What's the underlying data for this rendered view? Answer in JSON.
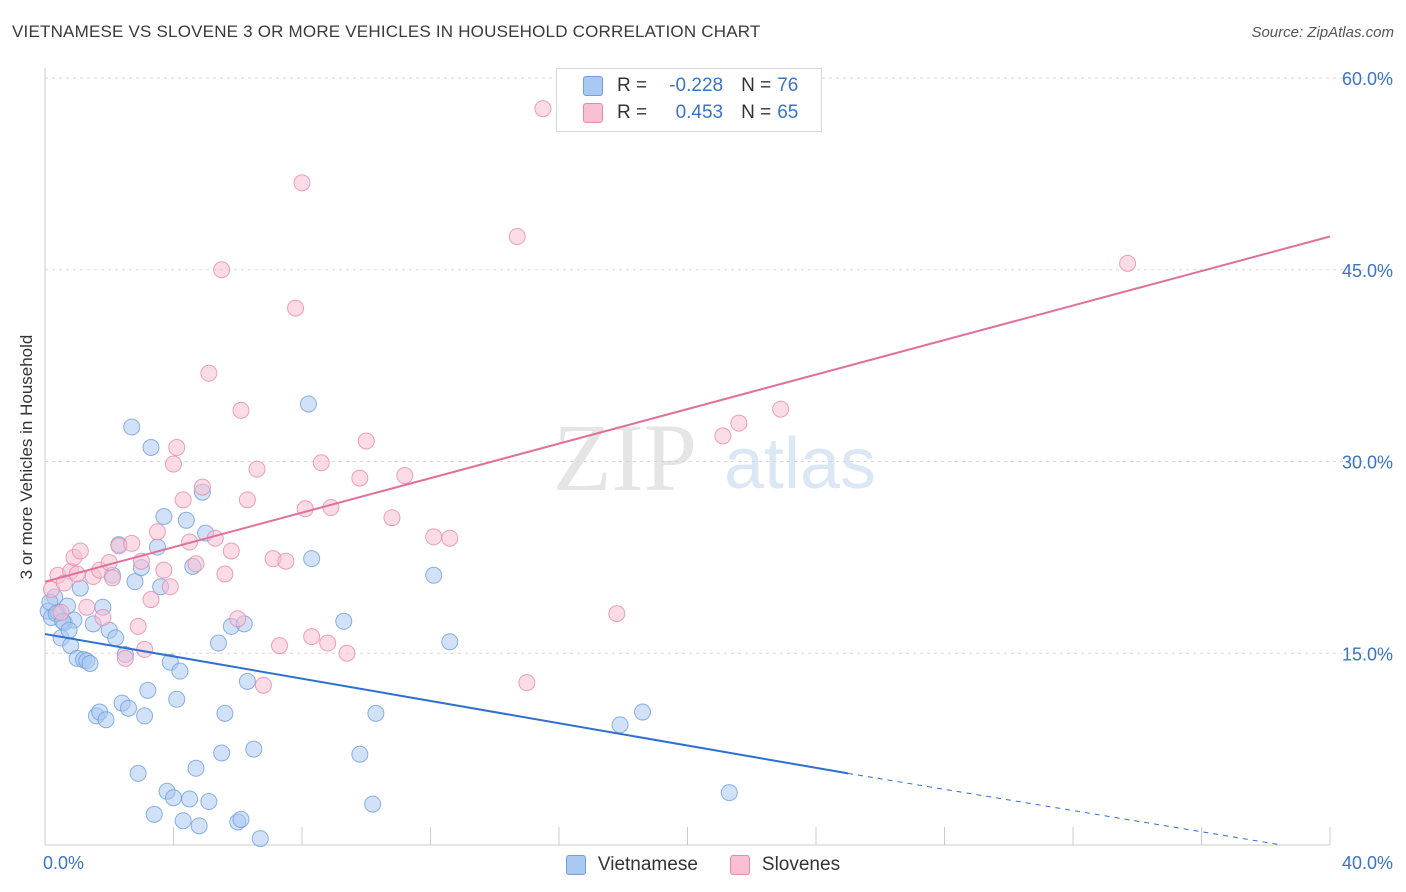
{
  "title": "VIETNAMESE VS SLOVENE 3 OR MORE VEHICLES IN HOUSEHOLD CORRELATION CHART",
  "source": "Source: ZipAtlas.com",
  "watermark": {
    "zip": "ZIP",
    "atlas": "atlas"
  },
  "legend": {
    "rows": [
      {
        "r_label": "R =",
        "r_value": "-0.228",
        "n_label": "N =",
        "n_value": "76",
        "color": "#a9c8f2",
        "border": "#6f9fdc"
      },
      {
        "r_label": "R =",
        "r_value": "0.453",
        "n_label": "N =",
        "n_value": "65",
        "color": "#f7bfd1",
        "border": "#e88aaa"
      }
    ]
  },
  "bottom_legend": [
    {
      "label": "Vietnamese",
      "color": "#a9c8f2",
      "border": "#6f9fdc"
    },
    {
      "label": "Slovenes",
      "color": "#f7bfd1",
      "border": "#e88aaa"
    }
  ],
  "chart_data": {
    "type": "scatter",
    "title": "VIETNAMESE VS SLOVENE 3 OR MORE VEHICLES IN HOUSEHOLD CORRELATION CHART",
    "xlabel": "",
    "ylabel": "3 or more Vehicles in Household",
    "xlim": [
      0,
      40
    ],
    "ylim": [
      0,
      60
    ],
    "x_tick_labels": [
      "0.0%",
      "40.0%"
    ],
    "y_ticks": [
      15,
      30,
      45,
      60
    ],
    "y_tick_labels": [
      "15.0%",
      "30.0%",
      "45.0%",
      "60.0%"
    ],
    "grid": true,
    "legend_position": "top-center",
    "series": [
      {
        "name": "Vietnamese",
        "color": "#6f9fdc",
        "fill": "#a9c8f2",
        "trend": {
          "x0": 0,
          "y0": 16.5,
          "x1": 25,
          "y1": 5.6,
          "dash_to_x": 38.5,
          "dash_to_y": 0
        },
        "points": [
          [
            0.1,
            18.3
          ],
          [
            0.2,
            17.8
          ],
          [
            0.3,
            19.4
          ],
          [
            0.4,
            18.2
          ],
          [
            0.5,
            16.2
          ],
          [
            0.6,
            17.4
          ],
          [
            0.7,
            18.7
          ],
          [
            0.8,
            15.6
          ],
          [
            0.9,
            17.6
          ],
          [
            1.0,
            14.6
          ],
          [
            1.1,
            20.1
          ],
          [
            1.2,
            14.5
          ],
          [
            1.3,
            14.4
          ],
          [
            1.4,
            14.2
          ],
          [
            1.5,
            17.3
          ],
          [
            1.6,
            10.1
          ],
          [
            1.7,
            10.4
          ],
          [
            1.8,
            18.6
          ],
          [
            1.9,
            9.8
          ],
          [
            2.0,
            16.8
          ],
          [
            2.1,
            21.1
          ],
          [
            2.2,
            16.2
          ],
          [
            2.3,
            23.5
          ],
          [
            2.4,
            11.1
          ],
          [
            2.5,
            14.9
          ],
          [
            2.6,
            10.7
          ],
          [
            2.7,
            32.7
          ],
          [
            2.8,
            20.6
          ],
          [
            2.9,
            5.6
          ],
          [
            3.0,
            21.7
          ],
          [
            3.1,
            10.1
          ],
          [
            3.2,
            12.1
          ],
          [
            3.3,
            31.1
          ],
          [
            3.4,
            2.4
          ],
          [
            3.5,
            23.3
          ],
          [
            3.6,
            20.2
          ],
          [
            3.7,
            25.7
          ],
          [
            3.8,
            4.2
          ],
          [
            3.9,
            14.3
          ],
          [
            4.0,
            3.7
          ],
          [
            4.1,
            11.4
          ],
          [
            4.2,
            13.6
          ],
          [
            4.3,
            1.9
          ],
          [
            4.4,
            25.4
          ],
          [
            4.5,
            3.6
          ],
          [
            4.6,
            21.8
          ],
          [
            4.7,
            6.0
          ],
          [
            4.8,
            1.5
          ],
          [
            4.9,
            27.6
          ],
          [
            5.0,
            24.4
          ],
          [
            5.1,
            3.4
          ],
          [
            5.4,
            15.8
          ],
          [
            5.5,
            7.2
          ],
          [
            5.6,
            10.3
          ],
          [
            5.8,
            17.1
          ],
          [
            6.0,
            1.8
          ],
          [
            6.1,
            2.0
          ],
          [
            6.2,
            17.3
          ],
          [
            6.3,
            12.8
          ],
          [
            6.5,
            7.5
          ],
          [
            6.7,
            0.5
          ],
          [
            8.2,
            34.5
          ],
          [
            8.3,
            22.4
          ],
          [
            9.3,
            17.5
          ],
          [
            9.8,
            7.1
          ],
          [
            10.2,
            3.2
          ],
          [
            10.3,
            10.3
          ],
          [
            12.1,
            21.1
          ],
          [
            12.6,
            15.9
          ],
          [
            17.9,
            9.4
          ],
          [
            18.6,
            10.4
          ],
          [
            21.3,
            4.1
          ],
          [
            0.15,
            19.0
          ],
          [
            0.35,
            18.1
          ],
          [
            0.55,
            17.5
          ],
          [
            0.75,
            16.8
          ]
        ]
      },
      {
        "name": "Slovenes",
        "color": "#e88aaa",
        "fill": "#f7bfd1",
        "trend": {
          "x0": 0,
          "y0": 20.6,
          "x1": 40,
          "y1": 47.6
        },
        "points": [
          [
            0.2,
            20.0
          ],
          [
            0.4,
            21.1
          ],
          [
            0.5,
            18.2
          ],
          [
            0.8,
            21.4
          ],
          [
            0.9,
            22.5
          ],
          [
            1.1,
            23.0
          ],
          [
            1.3,
            18.6
          ],
          [
            1.5,
            21.0
          ],
          [
            1.7,
            21.5
          ],
          [
            1.8,
            17.8
          ],
          [
            2.0,
            22.1
          ],
          [
            2.1,
            20.9
          ],
          [
            2.3,
            23.4
          ],
          [
            2.5,
            14.6
          ],
          [
            2.7,
            23.6
          ],
          [
            2.9,
            17.1
          ],
          [
            3.0,
            22.2
          ],
          [
            3.1,
            15.3
          ],
          [
            3.3,
            19.2
          ],
          [
            3.5,
            24.5
          ],
          [
            3.7,
            21.5
          ],
          [
            3.9,
            20.2
          ],
          [
            4.0,
            29.8
          ],
          [
            4.1,
            31.1
          ],
          [
            4.3,
            27.0
          ],
          [
            4.5,
            23.7
          ],
          [
            4.7,
            22.0
          ],
          [
            4.9,
            28.0
          ],
          [
            5.1,
            36.9
          ],
          [
            5.3,
            24.0
          ],
          [
            5.5,
            45.0
          ],
          [
            5.6,
            21.2
          ],
          [
            5.8,
            23.0
          ],
          [
            6.0,
            17.7
          ],
          [
            6.1,
            34.0
          ],
          [
            6.3,
            27.0
          ],
          [
            6.6,
            29.4
          ],
          [
            6.8,
            12.5
          ],
          [
            7.1,
            22.4
          ],
          [
            7.3,
            15.6
          ],
          [
            7.5,
            22.2
          ],
          [
            7.8,
            42.0
          ],
          [
            8.0,
            51.8
          ],
          [
            8.1,
            26.3
          ],
          [
            8.3,
            16.3
          ],
          [
            8.6,
            29.9
          ],
          [
            8.8,
            15.8
          ],
          [
            8.9,
            26.4
          ],
          [
            9.4,
            15.0
          ],
          [
            9.8,
            28.7
          ],
          [
            10.0,
            31.6
          ],
          [
            10.8,
            25.6
          ],
          [
            11.2,
            28.9
          ],
          [
            12.1,
            24.1
          ],
          [
            12.6,
            24.0
          ],
          [
            14.7,
            47.6
          ],
          [
            15.0,
            12.7
          ],
          [
            15.5,
            57.6
          ],
          [
            17.8,
            18.1
          ],
          [
            21.1,
            32.0
          ],
          [
            21.6,
            33.0
          ],
          [
            22.9,
            34.1
          ],
          [
            33.7,
            45.5
          ],
          [
            0.6,
            20.5
          ],
          [
            1.0,
            21.2
          ]
        ]
      }
    ]
  }
}
